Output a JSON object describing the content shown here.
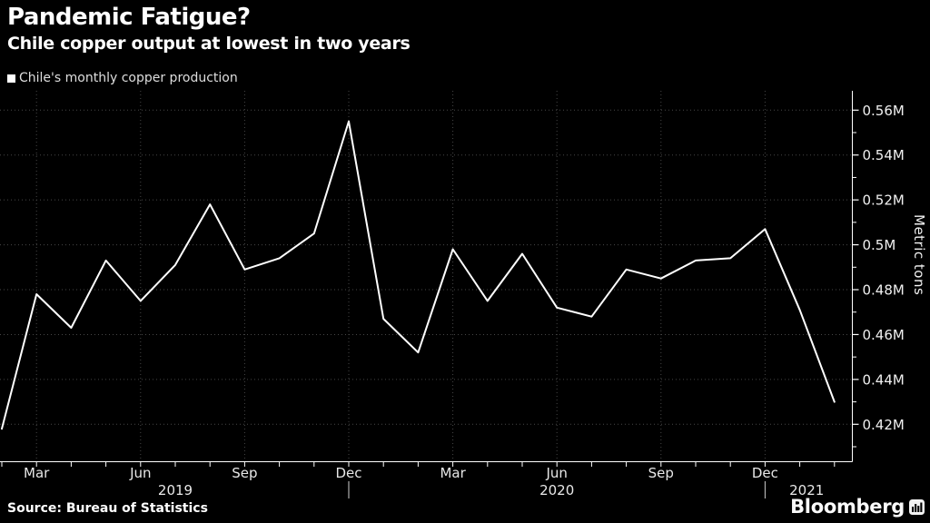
{
  "header": {
    "title": "Pandemic Fatigue?",
    "subtitle": "Chile copper output at lowest in two years",
    "legend": {
      "marker_color": "#ffffff",
      "label": "Chile's monthly copper production"
    }
  },
  "chart_data": {
    "type": "line",
    "title": "Pandemic Fatigue?",
    "subtitle": "Chile copper output at lowest in two years",
    "series": [
      {
        "name": "Chile's monthly copper production",
        "x": [
          "Feb 2019",
          "Mar 2019",
          "Apr 2019",
          "May 2019",
          "Jun 2019",
          "Jul 2019",
          "Aug 2019",
          "Sep 2019",
          "Oct 2019",
          "Nov 2019",
          "Dec 2019",
          "Jan 2020",
          "Feb 2020",
          "Mar 2020",
          "Apr 2020",
          "May 2020",
          "Jun 2020",
          "Jul 2020",
          "Aug 2020",
          "Sep 2020",
          "Oct 2020",
          "Nov 2020",
          "Dec 2020",
          "Jan 2021",
          "Feb 2021"
        ],
        "values": [
          0.418,
          0.478,
          0.463,
          0.493,
          0.475,
          0.491,
          0.518,
          0.489,
          0.494,
          0.505,
          0.555,
          0.467,
          0.452,
          0.498,
          0.475,
          0.496,
          0.472,
          0.468,
          0.489,
          0.485,
          0.493,
          0.494,
          0.507,
          0.471,
          0.43
        ]
      }
    ],
    "unit": "M metric tons",
    "ylabel": "Metric tons",
    "ylim": [
      0.4035,
      0.5686
    ],
    "grid": "dotted; horizontal every 0.02M, vertical at quarter months",
    "legend_position": "top-left",
    "y_axis_side": "right",
    "y_ticks_major": [
      {
        "value": 0.56,
        "label": "0.56M"
      },
      {
        "value": 0.54,
        "label": "0.54M"
      },
      {
        "value": 0.52,
        "label": "0.52M"
      },
      {
        "value": 0.5,
        "label": "0.5M"
      },
      {
        "value": 0.48,
        "label": "0.48M"
      },
      {
        "value": 0.46,
        "label": "0.46M"
      },
      {
        "value": 0.44,
        "label": "0.44M"
      },
      {
        "value": 0.42,
        "label": "0.42M"
      }
    ],
    "y_ticks_minor": [
      0.55,
      0.53,
      0.51,
      0.49,
      0.47,
      0.45,
      0.43,
      0.41
    ],
    "x_quarter_ticks": [
      {
        "i": 1,
        "label": "Mar"
      },
      {
        "i": 4,
        "label": "Jun"
      },
      {
        "i": 7,
        "label": "Sep"
      },
      {
        "i": 10,
        "label": "Dec"
      },
      {
        "i": 13,
        "label": "Mar"
      },
      {
        "i": 16,
        "label": "Jun"
      },
      {
        "i": 19,
        "label": "Sep"
      },
      {
        "i": 22,
        "label": "Dec"
      }
    ],
    "year_labels": [
      {
        "label": "2019",
        "center_i": 5
      },
      {
        "label": "2020",
        "center_i": 16
      },
      {
        "label": "2021",
        "center_i": 23.2
      }
    ],
    "year_divider_i": [
      10,
      22
    ],
    "colors": {
      "background": "#000000",
      "line": "#ffffff",
      "axis": "#ffffff",
      "grid": "#474747",
      "tick_label": "#f0f0f0",
      "month_label": "#e8e8e8",
      "year_divider": "#cfcfcf"
    }
  },
  "footer": {
    "source": "Source: Bureau of Statistics",
    "brand": "Bloomberg"
  }
}
